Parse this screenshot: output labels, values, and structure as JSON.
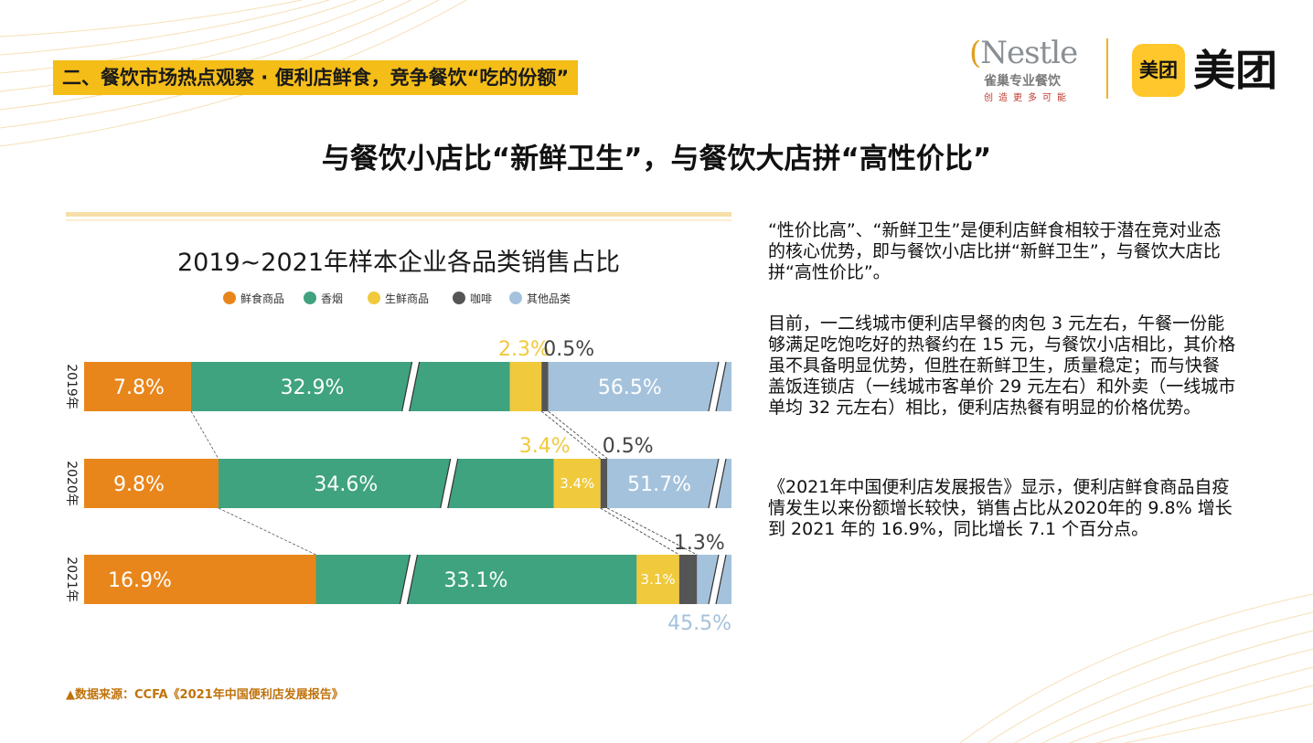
{
  "section_tag": "二、餐饮市场热点观察 · 便利店鲜食，竞争餐饮“吃的份额”",
  "logos": {
    "nestle_word": "Nestle",
    "nestle_sub": "雀巢专业餐饮",
    "nestle_tag": "创造更多可能",
    "meituan_box": "美团",
    "meituan_word": "美团"
  },
  "main_title": "与餐饮小店比“新鲜卫生”，与餐饮大店拼“高性价比”",
  "colors": {
    "accent": "#f5bd18",
    "fresh_food": "#e8861c",
    "tobacco": "#3fa37f",
    "fresh_produce": "#f0c93c",
    "coffee": "#555555",
    "other": "#a4c2dc"
  },
  "chart_data": {
    "type": "bar",
    "orientation": "horizontal",
    "stacked": true,
    "title": "2019~2021年样本企业各品类销售占比",
    "categories": [
      "2019年",
      "2020年",
      "2021年"
    ],
    "series": [
      {
        "name": "鲜食商品",
        "values": [
          7.8,
          9.8,
          16.9
        ],
        "labels": [
          "7.8%",
          "9.8%",
          "16.9%"
        ]
      },
      {
        "name": "香烟",
        "values": [
          32.9,
          34.6,
          33.1
        ],
        "labels": [
          "32.9%",
          "34.6%",
          "33.1%"
        ]
      },
      {
        "name": "生鲜商品",
        "values": [
          2.3,
          3.4,
          3.1
        ],
        "labels": [
          "2.3%",
          "3.4%",
          "3.1%"
        ]
      },
      {
        "name": "咖啡",
        "values": [
          0.5,
          0.5,
          1.3
        ],
        "labels": [
          "0.5%",
          "0.5%",
          "1.3%"
        ]
      },
      {
        "name": "其他品类",
        "values": [
          56.5,
          51.7,
          45.5
        ],
        "labels": [
          "56.5%",
          "51.7%",
          "45.5%"
        ]
      }
    ],
    "axis_break": true,
    "legend_position": "top"
  },
  "body": {
    "p1": "“性价比高”、“新鲜卫生”是便利店鲜食相较于潜在竞对业态的核心优势，即与餐饮小店比拼“新鲜卫生”，与餐饮大店比拼“高性价比”。",
    "p2": "目前，一二线城市便利店早餐的肉包 3 元左右，午餐一份能够满足吃饱吃好的热餐约在 15 元，与餐饮小店相比，其价格虽不具备明显优势，但胜在新鲜卫生，质量稳定；而与快餐盖饭连锁店（一线城市客单价 29 元左右）和外卖（一线城市单均 32 元左右）相比，便利店热餐有明显的价格优势。",
    "p3": "《2021年中国便利店发展报告》显示，便利店鲜食商品自疫情发生以来份额增长较快，销售占比从2020年的 9.8% 增长到 2021 年的 16.9%，同比增长 7.1 个百分点。"
  },
  "source": "▲数据来源：CCFA《2021年中国便利店发展报告》"
}
